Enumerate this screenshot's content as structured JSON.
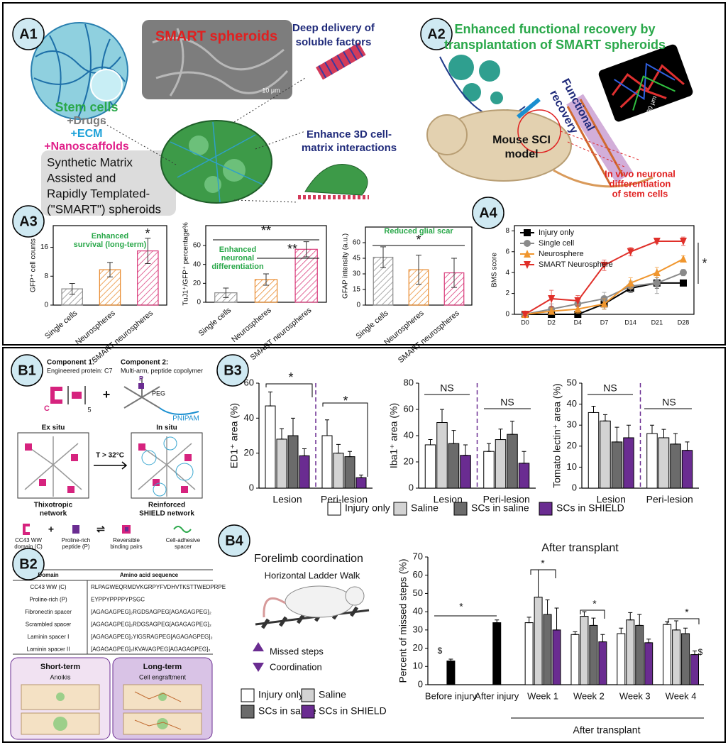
{
  "panels": [
    "A1",
    "A2",
    "A3",
    "A4",
    "B1",
    "B2",
    "B3",
    "B4"
  ],
  "a1": {
    "sem_title": "SMART spheroids",
    "sem_scale": "10 μm",
    "stem_cells": "Stem cells",
    "drugs": "+Drugs",
    "ecm": "+ECM",
    "nano": "+Nanoscaffolds",
    "acronym": [
      "Synthetic Matrix",
      "Assisted and",
      "Rapidly Templated-",
      "(\"SMART\") spheroids"
    ],
    "delivery": [
      "Deep delivery of",
      "soluble factors"
    ],
    "interactions": [
      "Enhance 3D cell-",
      "matrix interactions"
    ]
  },
  "a2": {
    "title": [
      "Enhanced functional recovery by",
      "transplantation of SMART spheroids"
    ],
    "model": [
      "Mouse SCI",
      "model"
    ],
    "recovery": [
      "Functional",
      "recovery"
    ],
    "differentiation": [
      "In vivo neuronal",
      "differentiation",
      "of stem cells"
    ],
    "scale": "100 μm"
  },
  "b1": {
    "component1": "Component 1:",
    "component1_desc": "Engineered protein: C7",
    "component2": "Component 2:",
    "component2_desc": "Multi-arm, peptide copolymer",
    "c": "C",
    "repeat": "5",
    "plus": "+",
    "p": "P",
    "peg": "PEG",
    "pnipam": "PNIPAM",
    "ex_situ": "Ex situ",
    "in_situ": "In situ",
    "trigger": "T > 32°C",
    "network1": [
      "Thixotropic",
      "network"
    ],
    "network2": [
      "Reinforced",
      "SHIELD network"
    ],
    "legend": [
      [
        "CC43 WW",
        "domain (C)"
      ],
      [
        "Proline-rich",
        "peptide (P)"
      ],
      [
        "Reversible",
        "binding pairs"
      ],
      [
        "Cell-adhesive",
        "spacer"
      ]
    ],
    "legend_plus": "+",
    "legend_eq": "⇌"
  },
  "b2": {
    "table": {
      "header": [
        "Domain",
        "Amino acid sequence"
      ],
      "rows": [
        [
          "CC43 WW (C)",
          "RLPAGWEQRMDVKGRPYFVDHVTKSTTWEDPRPE"
        ],
        [
          "Proline-rich (P)",
          "EYPPYPPPPYPSGC"
        ],
        [
          "Fibronectin spacer",
          "[AGAGAGPEG]₂RGDSAGPEG[AGAGAGPEG]₂"
        ],
        [
          "Scrambled spacer",
          "[AGAGAGPEG]₂RDGSAGPEG[AGAGAGPEG]₂"
        ],
        [
          "Laminin spacer I",
          "[AGAGAGPEG]₂YIGSRAGPEG[AGAGAGPEG]₂"
        ],
        [
          "Laminin spacer II",
          "[AGAGAGPEG]₂IKVAVAGPEG[AGAGAGPEG]₂"
        ]
      ]
    },
    "short_term": "Short-term",
    "anoikis": "Anoikis",
    "long_term": "Long-term",
    "engraftment": "Cell engraftment"
  },
  "b4": {
    "title": "Forelimb coordination",
    "subtitle": "Horizontal Ladder Walk",
    "missed": "Missed steps",
    "coordination": "Coordination",
    "after_transplant": "After transplant"
  },
  "chart_data": [
    {
      "type": "bar",
      "y_label": "GFP⁺ cell counts",
      "categories": [
        "Single cells",
        "Neurospheres",
        "SMART neurospheres"
      ],
      "values": [
        4.5,
        9.8,
        15
      ],
      "errors": [
        1.5,
        2,
        3.5
      ],
      "colors": [
        "#8a8a8a",
        "#e8892b",
        "#d93a7a"
      ],
      "hatched": true,
      "ylim": [
        0,
        22
      ],
      "yticks": [
        0,
        8,
        16
      ],
      "annotations": [
        "Enhanced",
        "survival (long-term)",
        "*"
      ]
    },
    {
      "type": "bar",
      "y_label": "TuJ1⁺/GFP⁺ percentage%",
      "categories": [
        "Single cells",
        "Neurospheres",
        "SMART neurospheres"
      ],
      "values": [
        10,
        24,
        56
      ],
      "errors": [
        5,
        6,
        8
      ],
      "colors": [
        "#8a8a8a",
        "#e8892b",
        "#d93a7a"
      ],
      "hatched": true,
      "ylim": [
        0,
        81
      ],
      "yticks": [
        0,
        20,
        40,
        60
      ],
      "annotations": [
        "**",
        "Enhanced",
        "neuronal",
        "differentiation",
        "**"
      ]
    },
    {
      "type": "bar",
      "y_label": "GFAP intensity (a.u.)",
      "categories": [
        "Single cells",
        "Neurospheres",
        "SMART neurospheres"
      ],
      "values": [
        46,
        34,
        31
      ],
      "errors": [
        10,
        14,
        14
      ],
      "colors": [
        "#8a8a8a",
        "#e8892b",
        "#d93a7a"
      ],
      "hatched": true,
      "ylim": [
        0,
        75
      ],
      "yticks": [
        0,
        15,
        30,
        45,
        60
      ],
      "annotations": [
        "Reduced glial scar",
        "*"
      ]
    },
    {
      "type": "line",
      "y_label": "BMS score",
      "categories": [
        "D0",
        "D2",
        "D4",
        "D7",
        "D14",
        "D21",
        "D28"
      ],
      "series": [
        {
          "name": "Injury only",
          "color": "#000000",
          "marker": "square",
          "values": [
            0,
            0,
            0,
            1,
            2.5,
            3,
            3
          ],
          "errors": [
            0.1,
            0.3,
            0.2,
            0.5,
            0.4,
            0.5,
            0.1
          ]
        },
        {
          "name": "Single cell",
          "color": "#8a8a8a",
          "marker": "circle",
          "values": [
            0,
            0.5,
            1,
            1.5,
            2.7,
            3,
            4
          ],
          "errors": [
            0.1,
            0.5,
            0.5,
            0.6,
            0.5,
            1,
            0.3
          ]
        },
        {
          "name": "Neurosphere",
          "color": "#f0962e",
          "marker": "triangle-up",
          "values": [
            0,
            0.3,
            0.5,
            1,
            3,
            4,
            5.3
          ],
          "errors": [
            0.1,
            0.3,
            0.4,
            0.5,
            0.5,
            0.5,
            0.3
          ]
        },
        {
          "name": "SMART Neurosphere",
          "color": "#e0302a",
          "marker": "triangle-down",
          "values": [
            0,
            1.5,
            1.3,
            4.7,
            6,
            7,
            7
          ],
          "errors": [
            0.1,
            0.8,
            0.5,
            0.5,
            0.4,
            0.2,
            0.4
          ]
        }
      ],
      "ylim": [
        0,
        8.5
      ],
      "yticks": [
        0,
        2,
        4,
        6,
        8
      ],
      "annotations": [
        "*"
      ]
    },
    {
      "type": "bar",
      "y_label": "ED1⁺ area (%)",
      "categories": [
        "Lesion",
        "Peri-lesion"
      ],
      "series": [
        {
          "name": "Injury only",
          "color": "#ffffff",
          "values": [
            47,
            30
          ],
          "errors": [
            8,
            9
          ]
        },
        {
          "name": "Saline",
          "color": "#d3d3d3",
          "values": [
            28,
            20
          ],
          "errors": [
            6,
            5
          ]
        },
        {
          "name": "SCs in saline",
          "color": "#6b6b6b",
          "values": [
            30,
            18
          ],
          "errors": [
            10,
            3
          ]
        },
        {
          "name": "SCs in SHIELD",
          "color": "#6a2c91",
          "values": [
            18.5,
            6
          ],
          "errors": [
            4,
            1.5
          ]
        }
      ],
      "ylim": [
        0,
        60
      ],
      "yticks": [
        0,
        20,
        40,
        60
      ],
      "divider_color": "#6a2c91",
      "annotations": [
        "*",
        "*"
      ]
    },
    {
      "type": "bar",
      "y_label": "Iba1⁺ area (%)",
      "categories": [
        "Lesion",
        "Peri-lesion"
      ],
      "series": [
        {
          "color": "#ffffff",
          "values": [
            33,
            28
          ],
          "errors": [
            4,
            6
          ]
        },
        {
          "color": "#d3d3d3",
          "values": [
            50,
            37
          ],
          "errors": [
            10,
            8
          ]
        },
        {
          "color": "#6b6b6b",
          "values": [
            34,
            41
          ],
          "errors": [
            10,
            10
          ]
        },
        {
          "color": "#6a2c91",
          "values": [
            25,
            19
          ],
          "errors": [
            8,
            9
          ]
        }
      ],
      "ylim": [
        0,
        80
      ],
      "yticks": [
        0,
        20,
        40,
        60,
        80
      ],
      "divider_color": "#6a2c91",
      "annotations": [
        "NS",
        "NS"
      ]
    },
    {
      "type": "bar",
      "y_label": "Tomato lectin⁺ area (%)",
      "categories": [
        "Lesion",
        "Peri-lesion"
      ],
      "series": [
        {
          "color": "#ffffff",
          "values": [
            36,
            26
          ],
          "errors": [
            3,
            4
          ]
        },
        {
          "color": "#d3d3d3",
          "values": [
            32,
            24
          ],
          "errors": [
            3,
            4
          ]
        },
        {
          "color": "#6b6b6b",
          "values": [
            22,
            21
          ],
          "errors": [
            7,
            5
          ]
        },
        {
          "color": "#6a2c91",
          "values": [
            24,
            18
          ],
          "errors": [
            6,
            4
          ]
        }
      ],
      "ylim": [
        0,
        50
      ],
      "yticks": [
        0,
        10,
        20,
        30,
        40,
        50
      ],
      "divider_color": "#6a2c91",
      "annotations": [
        "NS",
        "NS"
      ]
    },
    {
      "type": "bar",
      "title": "After transplant",
      "y_label": "Percent of missed steps (%)",
      "categories": [
        "Before injury",
        "After injury",
        "Week 1",
        "Week 2",
        "Week 3",
        "Week 4"
      ],
      "series": [
        {
          "color": "#000000",
          "values": [
            13,
            34,
            null,
            null,
            null,
            null
          ],
          "errors": [
            1,
            1.5,
            null,
            null,
            null,
            null
          ]
        },
        {
          "name": "Injury only",
          "color": "#ffffff",
          "values": [
            null,
            null,
            34,
            27.5,
            28,
            33
          ],
          "errors": [
            null,
            null,
            3,
            1.5,
            3,
            1.5
          ]
        },
        {
          "name": "Saline",
          "color": "#d3d3d3",
          "values": [
            null,
            null,
            48,
            37.5,
            35.5,
            30
          ],
          "errors": [
            null,
            null,
            15,
            2.5,
            4,
            5
          ]
        },
        {
          "name": "SCs in saline",
          "color": "#6b6b6b",
          "values": [
            null,
            null,
            38.5,
            32.5,
            32.5,
            28
          ],
          "errors": [
            null,
            null,
            8,
            4,
            6,
            3
          ]
        },
        {
          "name": "SCs in SHIELD",
          "color": "#6a2c91",
          "values": [
            null,
            null,
            30,
            23.5,
            23,
            16.5
          ],
          "errors": [
            null,
            null,
            12,
            4,
            2,
            2
          ]
        }
      ],
      "ylim": [
        0,
        70
      ],
      "yticks": [
        0,
        10,
        20,
        30,
        40,
        50,
        60,
        70
      ],
      "annotations": [
        "*",
        "$",
        "*",
        "*",
        "*",
        "$"
      ]
    }
  ]
}
